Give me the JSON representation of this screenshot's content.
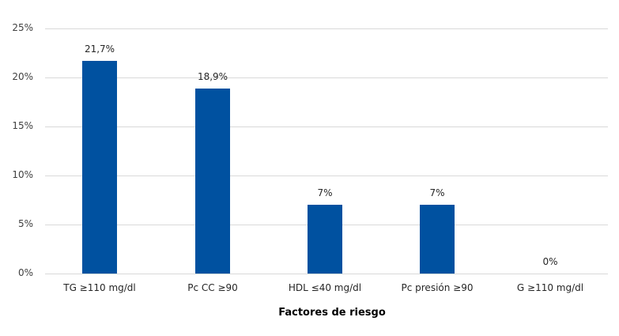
{
  "chart_data": {
    "type": "bar",
    "title": "",
    "xlabel": "Factores de riesgo",
    "ylabel": "",
    "ylim": [
      0,
      25
    ],
    "yticks": [
      "0%",
      "5%",
      "10%",
      "15%",
      "20%",
      "25%"
    ],
    "grid": true,
    "legend": null,
    "color": "#0051a0",
    "categories": [
      "TG ≥110 mg/dl",
      "Pc CC ≥90",
      "HDL ≤40 mg/dl",
      "Pc presión ≥90",
      "G ≥110 mg/dl"
    ],
    "values": [
      21.7,
      18.9,
      7,
      7,
      0
    ],
    "data_labels": [
      "21,7%",
      "18,9%",
      "7%",
      "7%",
      "0%"
    ]
  }
}
